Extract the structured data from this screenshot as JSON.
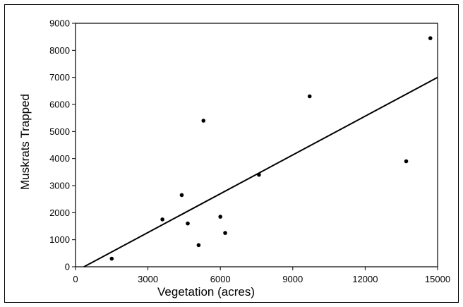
{
  "chart_data": {
    "type": "scatter",
    "title": "",
    "xlabel": "Vegetation (acres)",
    "ylabel": "Muskrats Trapped",
    "xlim": [
      0,
      15000
    ],
    "ylim": [
      0,
      9000
    ],
    "x_ticks": [
      0,
      3000,
      6000,
      9000,
      12000,
      15000
    ],
    "y_ticks": [
      0,
      1000,
      2000,
      3000,
      4000,
      5000,
      6000,
      7000,
      8000,
      9000
    ],
    "grid": false,
    "legend": "none",
    "series": [
      {
        "points": [
          {
            "x": 1500,
            "y": 300
          },
          {
            "x": 3600,
            "y": 1750
          },
          {
            "x": 4400,
            "y": 2650
          },
          {
            "x": 4650,
            "y": 1600
          },
          {
            "x": 5100,
            "y": 800
          },
          {
            "x": 5300,
            "y": 5400
          },
          {
            "x": 6000,
            "y": 1850
          },
          {
            "x": 6200,
            "y": 1250
          },
          {
            "x": 7600,
            "y": 3400
          },
          {
            "x": 9700,
            "y": 6300
          },
          {
            "x": 13700,
            "y": 3900
          },
          {
            "x": 14700,
            "y": 8450
          }
        ]
      }
    ],
    "trendline": {
      "type": "linear",
      "points": [
        {
          "x": 350,
          "y": 0
        },
        {
          "x": 15000,
          "y": 7000
        }
      ]
    },
    "colors": {
      "points": "#000000",
      "line": "#000000",
      "axes": "#000000"
    }
  }
}
